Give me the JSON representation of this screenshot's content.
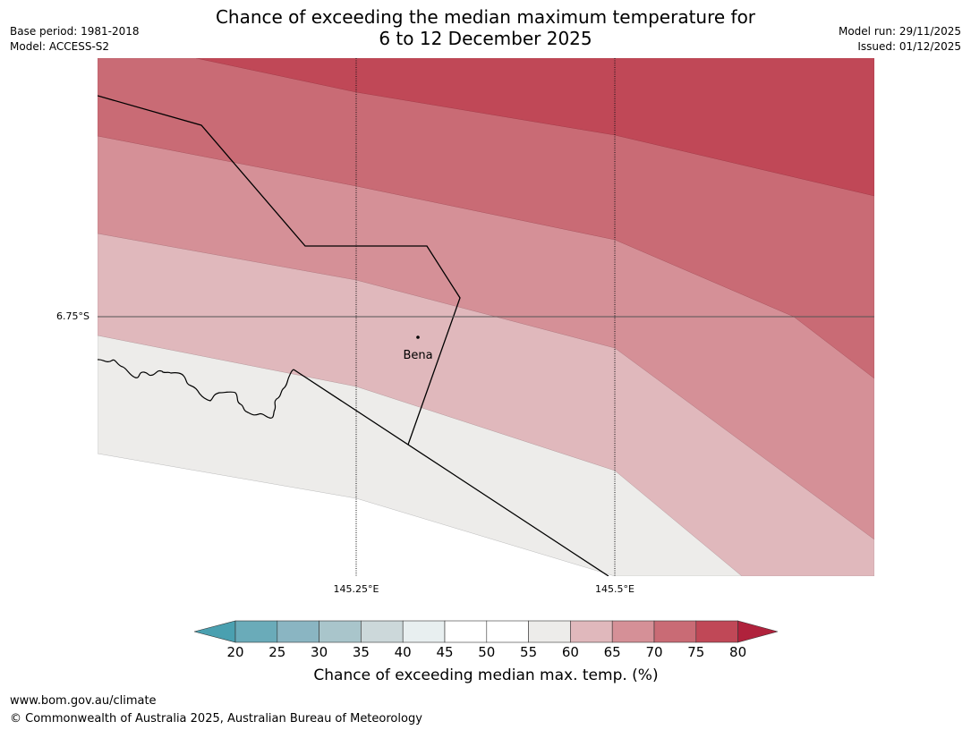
{
  "header": {
    "title_line1": "Chance of exceeding the median maximum temperature for",
    "title_line2": "6 to 12 December 2025",
    "base_period": "Base period: 1981-2018",
    "model": "Model: ACCESS-S2",
    "model_run": "Model run: 29/11/2025",
    "issued": "Issued: 01/12/2025"
  },
  "map": {
    "gridlines": {
      "lat_label": "6.75°S",
      "lon_labels": [
        "145.25°E",
        "145.5°E"
      ]
    },
    "places": [
      {
        "name": "Bena"
      }
    ]
  },
  "colorbar": {
    "label": "Chance of exceeding median max. temp. (%)",
    "ticks": [
      "20",
      "25",
      "30",
      "35",
      "40",
      "45",
      "50",
      "55",
      "60",
      "65",
      "70",
      "75",
      "80"
    ],
    "colors": {
      "below_20": "#4aa0b0",
      "20_25": "#6aabb9",
      "25_30": "#8ab5c2",
      "30_35": "#a9c5cb",
      "35_40": "#ccd8da",
      "40_45": "#e8eff0",
      "45_55": "#ffffff",
      "55_60": "#edecea",
      "60_65": "#e0b8bc",
      "65_70": "#d59097",
      "70_75": "#c96b75",
      "75_80": "#c04857",
      "above_80": "#b0223c"
    }
  },
  "footer": {
    "url": "www.bom.gov.au/climate",
    "copyright": "© Commonwealth of Australia 2025, Australian Bureau of Meteorology"
  }
}
